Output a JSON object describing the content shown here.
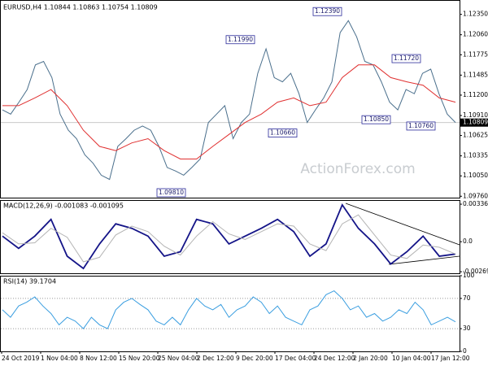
{
  "chart_data": [
    {
      "type": "line",
      "title": "EURUSD,H4  1.10844 1.10863 1.10754 1.10809",
      "watermark": "ActionForex.com",
      "ylim": [
        1.0974,
        1.1252
      ],
      "yticks": [
        {
          "value": 1.1235,
          "label": "1.12350"
        },
        {
          "value": 1.1206,
          "label": "1.12060"
        },
        {
          "value": 1.11775,
          "label": "1.11775"
        },
        {
          "value": 1.11485,
          "label": "1.11485"
        },
        {
          "value": 1.112,
          "label": "1.11200"
        },
        {
          "value": 1.1091,
          "label": "1.10910"
        },
        {
          "value": 1.10625,
          "label": "1.10625"
        },
        {
          "value": 1.10335,
          "label": "1.10335"
        },
        {
          "value": 1.1005,
          "label": "1.10050"
        },
        {
          "value": 1.0976,
          "label": "1.09760"
        }
      ],
      "current_price": 1.10809,
      "series": [
        {
          "name": "EURUSD",
          "color": "#4a6f8c",
          "values": [
            1.1099,
            1.1093,
            1.111,
            1.1128,
            1.1163,
            1.1168,
            1.1145,
            1.1093,
            1.107,
            1.1058,
            1.1035,
            1.1023,
            1.1006,
            1.1,
            1.1047,
            1.1058,
            1.107,
            1.1076,
            1.107,
            1.1047,
            1.1017,
            1.1012,
            1.1006,
            1.1017,
            1.1029,
            1.1081,
            1.1093,
            1.1105,
            1.1058,
            1.1081,
            1.1093,
            1.1151,
            1.1186,
            1.1145,
            1.1139,
            1.1151,
            1.1122,
            1.1081,
            1.1099,
            1.1116,
            1.1139,
            1.1209,
            1.1226,
            1.1203,
            1.1168,
            1.1163,
            1.1139,
            1.111,
            1.1099,
            1.1128,
            1.1122,
            1.1151,
            1.1157,
            1.1122,
            1.1093,
            1.1081
          ]
        },
        {
          "name": "MA",
          "color": "#e03030",
          "values": [
            1.1105,
            1.1105,
            1.1116,
            1.1128,
            1.1105,
            1.107,
            1.1047,
            1.1041,
            1.1052,
            1.1058,
            1.1041,
            1.1029,
            1.1029,
            1.1047,
            1.1064,
            1.1081,
            1.1093,
            1.111,
            1.1116,
            1.1105,
            1.111,
            1.1145,
            1.1163,
            1.1163,
            1.1145,
            1.1139,
            1.1134,
            1.1116,
            1.111
          ]
        }
      ],
      "annotations": [
        {
          "value": 1.1239,
          "label": "1.12390"
        },
        {
          "value": 1.1199,
          "label": "1.11990"
        },
        {
          "value": 1.1172,
          "label": "1.11720"
        },
        {
          "value": 1.1085,
          "label": "1.10850"
        },
        {
          "value": 1.1066,
          "label": "1.10660"
        },
        {
          "value": 1.1076,
          "label": "1.10760"
        },
        {
          "value": 1.0981,
          "label": "1.09810"
        }
      ]
    },
    {
      "type": "line",
      "title": "MACD(12,26,9) -0.001083 -0.001095",
      "ylim": [
        -0.00283,
        0.00373
      ],
      "yticks": [
        0.003362,
        {
          "value": 0,
          "label": "0.0"
        },
        -0.002691
      ],
      "series": [
        {
          "name": "MACD",
          "color": "#141488",
          "values": [
            0.0005,
            -0.0006,
            0.0005,
            0.002,
            -0.0013,
            -0.0024,
            -0.0002,
            0.0016,
            0.0012,
            0.0005,
            -0.0013,
            -0.0009,
            0.002,
            0.0016,
            -0.0002,
            0.0005,
            0.0012,
            0.002,
            0.0009,
            -0.0013,
            -0.0002,
            0.0033,
            0.0012,
            -0.0002,
            -0.002,
            -0.0009,
            0.0005,
            -0.0013,
            -0.0011
          ]
        },
        {
          "name": "Signal",
          "color": "#b4b4b4",
          "values": [
            0.0008,
            -0.0002,
            -0.0001,
            0.0012,
            0.0004,
            -0.0018,
            -0.0014,
            0.0006,
            0.0014,
            0.0009,
            -0.0004,
            -0.0012,
            0.0005,
            0.0018,
            0.0007,
            0.0002,
            0.0009,
            0.0016,
            0.0014,
            -0.0002,
            -0.0008,
            0.0016,
            0.0024,
            0.0006,
            -0.0012,
            -0.0015,
            -0.0003,
            -0.0005,
            -0.0011
          ]
        }
      ]
    },
    {
      "type": "line",
      "title": "RSI(14) 39.1704",
      "ylim": [
        0,
        100
      ],
      "yticks": [
        100,
        70,
        30,
        0
      ],
      "levels": [
        70,
        30
      ],
      "series": [
        {
          "name": "RSI",
          "color": "#3a9ee0",
          "values": [
            55,
            45,
            60,
            65,
            72,
            60,
            50,
            35,
            45,
            40,
            30,
            45,
            35,
            30,
            55,
            65,
            70,
            62,
            55,
            40,
            35,
            45,
            35,
            55,
            70,
            60,
            55,
            62,
            45,
            55,
            60,
            72,
            65,
            50,
            60,
            45,
            40,
            35,
            55,
            60,
            75,
            80,
            70,
            55,
            60,
            45,
            50,
            40,
            45,
            55,
            50,
            65,
            55,
            35,
            40,
            45,
            39
          ]
        }
      ],
      "xtick_labels": [
        "24 Oct 2019",
        "1 Nov 04:00",
        "8 Nov 12:00",
        "15 Nov 20:00",
        "25 Nov 04:00",
        "2 Dec 12:00",
        "9 Dec 20:00",
        "17 Dec 04:00",
        "24 Dec 12:00",
        "2 Jan 20:00",
        "10 Jan 04:00",
        "17 Jan 12:00"
      ]
    }
  ]
}
